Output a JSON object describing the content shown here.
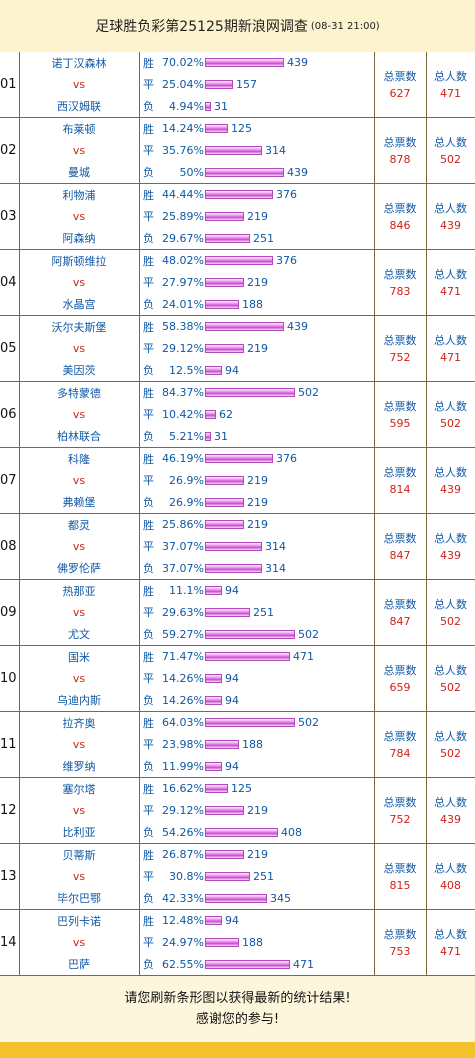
{
  "header": {
    "title": "足球胜负彩第25125期新浪网调查",
    "date": "(08-31 21:00)"
  },
  "labels": {
    "vs": "vs",
    "total_label": "总票数",
    "people_label": "总人数",
    "win": "胜",
    "draw": "平",
    "lose": "负"
  },
  "matches": [
    {
      "num": "01",
      "home": "诺丁汉森林",
      "away": "西汉姆联",
      "win_pct": "70.02%",
      "win_cnt": "439",
      "draw_pct": "25.04%",
      "draw_cnt": "157",
      "lose_pct": "4.94%",
      "lose_cnt": "31",
      "total": "627",
      "people": "471"
    },
    {
      "num": "02",
      "home": "布莱顿",
      "away": "曼城",
      "win_pct": "14.24%",
      "win_cnt": "125",
      "draw_pct": "35.76%",
      "draw_cnt": "314",
      "lose_pct": "50%",
      "lose_cnt": "439",
      "total": "878",
      "people": "502"
    },
    {
      "num": "03",
      "home": "利物浦",
      "away": "阿森纳",
      "win_pct": "44.44%",
      "win_cnt": "376",
      "draw_pct": "25.89%",
      "draw_cnt": "219",
      "lose_pct": "29.67%",
      "lose_cnt": "251",
      "total": "846",
      "people": "439"
    },
    {
      "num": "04",
      "home": "阿斯顿维拉",
      "away": "水晶宫",
      "win_pct": "48.02%",
      "win_cnt": "376",
      "draw_pct": "27.97%",
      "draw_cnt": "219",
      "lose_pct": "24.01%",
      "lose_cnt": "188",
      "total": "783",
      "people": "471"
    },
    {
      "num": "05",
      "home": "沃尔夫斯堡",
      "away": "美因茨",
      "win_pct": "58.38%",
      "win_cnt": "439",
      "draw_pct": "29.12%",
      "draw_cnt": "219",
      "lose_pct": "12.5%",
      "lose_cnt": "94",
      "total": "752",
      "people": "471"
    },
    {
      "num": "06",
      "home": "多特蒙德",
      "away": "柏林联合",
      "win_pct": "84.37%",
      "win_cnt": "502",
      "draw_pct": "10.42%",
      "draw_cnt": "62",
      "lose_pct": "5.21%",
      "lose_cnt": "31",
      "total": "595",
      "people": "502"
    },
    {
      "num": "07",
      "home": "科隆",
      "away": "弗赖堡",
      "win_pct": "46.19%",
      "win_cnt": "376",
      "draw_pct": "26.9%",
      "draw_cnt": "219",
      "lose_pct": "26.9%",
      "lose_cnt": "219",
      "total": "814",
      "people": "439"
    },
    {
      "num": "08",
      "home": "都灵",
      "away": "佛罗伦萨",
      "win_pct": "25.86%",
      "win_cnt": "219",
      "draw_pct": "37.07%",
      "draw_cnt": "314",
      "lose_pct": "37.07%",
      "lose_cnt": "314",
      "total": "847",
      "people": "439"
    },
    {
      "num": "09",
      "home": "热那亚",
      "away": "尤文",
      "win_pct": "11.1%",
      "win_cnt": "94",
      "draw_pct": "29.63%",
      "draw_cnt": "251",
      "lose_pct": "59.27%",
      "lose_cnt": "502",
      "total": "847",
      "people": "502"
    },
    {
      "num": "10",
      "home": "国米",
      "away": "乌迪内斯",
      "win_pct": "71.47%",
      "win_cnt": "471",
      "draw_pct": "14.26%",
      "draw_cnt": "94",
      "lose_pct": "14.26%",
      "lose_cnt": "94",
      "total": "659",
      "people": "502"
    },
    {
      "num": "11",
      "home": "拉齐奥",
      "away": "维罗纳",
      "win_pct": "64.03%",
      "win_cnt": "502",
      "draw_pct": "23.98%",
      "draw_cnt": "188",
      "lose_pct": "11.99%",
      "lose_cnt": "94",
      "total": "784",
      "people": "502"
    },
    {
      "num": "12",
      "home": "塞尔塔",
      "away": "比利亚",
      "win_pct": "16.62%",
      "win_cnt": "125",
      "draw_pct": "29.12%",
      "draw_cnt": "219",
      "lose_pct": "54.26%",
      "lose_cnt": "408",
      "total": "752",
      "people": "439"
    },
    {
      "num": "13",
      "home": "贝蒂斯",
      "away": "毕尔巴鄂",
      "win_pct": "26.87%",
      "win_cnt": "219",
      "draw_pct": "30.8%",
      "draw_cnt": "251",
      "lose_pct": "42.33%",
      "lose_cnt": "345",
      "total": "815",
      "people": "408"
    },
    {
      "num": "14",
      "home": "巴列卡诺",
      "away": "巴萨",
      "win_pct": "12.48%",
      "win_cnt": "94",
      "draw_pct": "24.97%",
      "draw_cnt": "188",
      "lose_pct": "62.55%",
      "lose_cnt": "471",
      "total": "753",
      "people": "471"
    }
  ],
  "footer": {
    "line1": "请您刷新条形图以获得最新的统计结果!",
    "line2": "感谢您的参与!"
  },
  "colors": {
    "team": "#0f58a4",
    "vs": "#d0221a",
    "bar": "#d66bd9",
    "background": "#fdf6dc",
    "strip": "#f2c12c"
  }
}
